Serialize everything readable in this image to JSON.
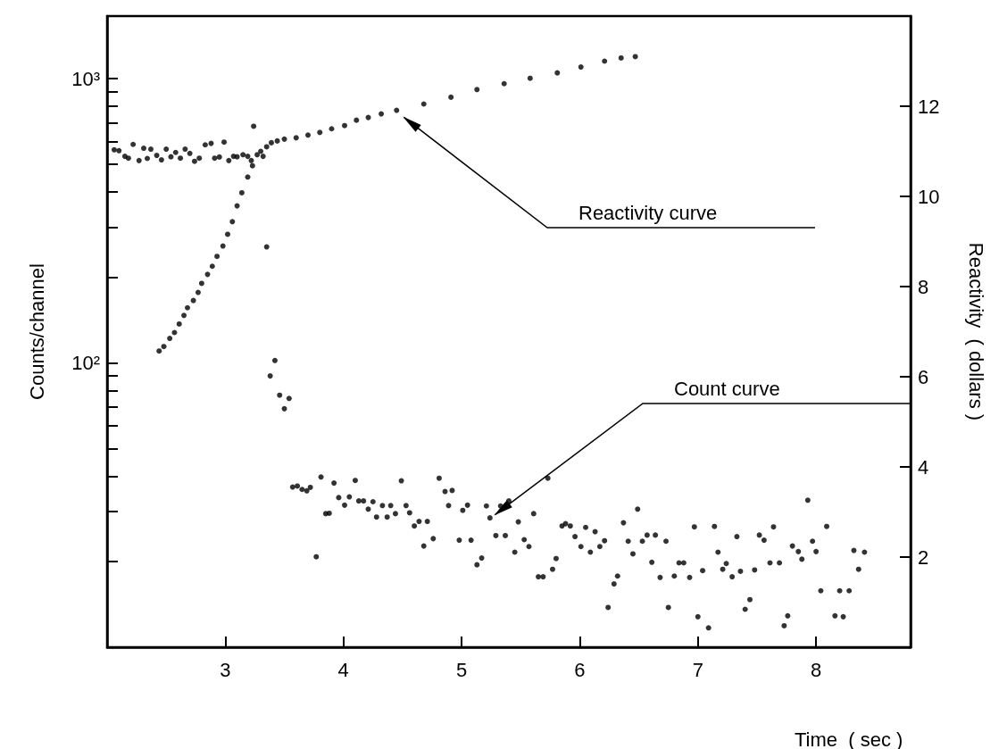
{
  "chart_data": {
    "type": "scatter",
    "xlabel": "Time  ( sec )",
    "ylabel": "Counts/channel",
    "y2label": "Reactivity  ( dollars )",
    "xlim": [
      2,
      8.8
    ],
    "xticks": [
      3,
      4,
      5,
      6,
      7,
      8
    ],
    "ylim": [
      10,
      1660
    ],
    "yticks": [
      {
        "value": 20,
        "label": null
      },
      {
        "value": 30,
        "label": null
      },
      {
        "value": 40,
        "label": null
      },
      {
        "value": 50,
        "label": null
      },
      {
        "value": 60,
        "label": null
      },
      {
        "value": 70,
        "label": null
      },
      {
        "value": 80,
        "label": null
      },
      {
        "value": 90,
        "label": null
      },
      {
        "value": 100,
        "label": "10²"
      },
      {
        "value": 200,
        "label": null
      },
      {
        "value": 300,
        "label": null
      },
      {
        "value": 400,
        "label": null
      },
      {
        "value": 500,
        "label": null
      },
      {
        "value": 600,
        "label": null
      },
      {
        "value": 700,
        "label": null
      },
      {
        "value": 800,
        "label": null
      },
      {
        "value": 900,
        "label": null
      },
      {
        "value": 1000,
        "label": "10³"
      }
    ],
    "y2lim": [
      0,
      14
    ],
    "y2ticks": [
      2,
      4,
      6,
      8,
      10,
      12
    ],
    "log": "y",
    "grid": false,
    "marker": "circle",
    "annotations": [
      "Reactivity curve",
      "Count curve"
    ],
    "series": [
      {
        "color": "#000000",
        "x": [
          2.06,
          2.1,
          2.15,
          2.18,
          2.22,
          2.27,
          2.31,
          2.34,
          2.37,
          2.42,
          2.46,
          2.5,
          2.54,
          2.58,
          2.62,
          2.66,
          2.7,
          2.74,
          2.78,
          2.83,
          2.88,
          2.91,
          2.95,
          2.99,
          3.03,
          3.07,
          3.1,
          3.15,
          3.19,
          3.22,
          3.24,
          3.27,
          3.32,
          3.35,
          3.38,
          3.42,
          3.46,
          3.5,
          3.54,
          3.57,
          3.61,
          3.65,
          3.69,
          3.72,
          3.77,
          3.81,
          3.85,
          3.88,
          3.92,
          3.96,
          4.01,
          4.05,
          4.1,
          4.13,
          4.17,
          4.21,
          4.25,
          4.28,
          4.33,
          4.37,
          4.4,
          4.44,
          4.49,
          4.53,
          4.56,
          4.6,
          4.64,
          4.68,
          4.71,
          4.76,
          4.81,
          4.86,
          4.89,
          4.92,
          4.98,
          5.01,
          5.05,
          5.08,
          5.13,
          5.17,
          5.21,
          5.24,
          5.29,
          5.33,
          5.37,
          5.4,
          5.45,
          5.48,
          5.53,
          5.57,
          5.61,
          5.65,
          5.69,
          5.73,
          5.77,
          5.8,
          5.85,
          5.88,
          5.92,
          5.96,
          6.01,
          6.05,
          6.09,
          6.13,
          6.17,
          6.21,
          6.24,
          6.29,
          6.32,
          6.37,
          6.41,
          6.45,
          6.49,
          6.53,
          6.57,
          6.61,
          6.64,
          6.68,
          6.73,
          6.75,
          6.8,
          6.84,
          6.88,
          6.93,
          6.97,
          7.0,
          7.04,
          7.09,
          7.14,
          7.17,
          7.21,
          7.24,
          7.29,
          7.33,
          7.36,
          7.4,
          7.44,
          7.48,
          7.52,
          7.56,
          7.61,
          7.64,
          7.69,
          7.73,
          7.76,
          7.8,
          7.85,
          7.88,
          7.93,
          7.97,
          8.0,
          8.04,
          8.09,
          8.16,
          8.2,
          8.23,
          8.28,
          8.32,
          8.36,
          8.41
        ],
        "values": [
          562,
          558,
          533,
          525,
          587,
          515,
          569,
          524,
          565,
          537,
          518,
          565,
          531,
          550,
          525,
          565,
          546,
          512,
          525,
          585,
          592,
          525,
          530,
          598,
          515,
          533,
          531,
          540,
          533,
          515,
          680,
          540,
          533,
          256,
          90,
          102,
          77,
          69,
          75,
          36.6,
          36.9,
          35.9,
          35.5,
          36.5,
          20.8,
          39.7,
          29.5,
          29.6,
          37.8,
          33.6,
          31.6,
          33.8,
          38.6,
          32.7,
          32.7,
          30.6,
          32.5,
          28.7,
          31.5,
          28.7,
          31.5,
          29.5,
          38.5,
          31.5,
          29.7,
          26.7,
          27.7,
          22.7,
          27.7,
          24.1,
          39.3,
          35.3,
          31.5,
          35.6,
          23.8,
          30.3,
          31.6,
          23.8,
          19.5,
          20.6,
          31.4,
          28.5,
          24.7,
          31.4,
          24.7,
          32.7,
          21.6,
          27.6,
          23.9,
          22.6,
          29.5,
          17.7,
          17.7,
          39.3,
          18.8,
          20.5,
          26.7,
          27.2,
          26.7,
          24.5,
          22.6,
          26.4,
          21.6,
          25.5,
          22.6,
          23.7,
          13.8,
          16.7,
          17.8,
          27.4,
          23.6,
          21.3,
          30.6,
          23.6,
          24.8,
          19.9,
          24.8,
          17.6,
          23.6,
          13.8,
          17.8,
          19.8,
          19.8,
          17.6,
          26.5,
          12.8,
          18.6,
          11.7,
          26.6,
          21.6,
          18.8,
          19.7,
          17.7,
          24.5,
          18.5,
          13.6,
          14.7,
          18.7,
          24.8,
          23.8,
          19.8,
          26.5,
          19.8,
          11.9,
          12.9,
          22.7,
          21.7,
          20.4,
          32.9,
          23.6,
          21.7,
          15.8,
          26.6,
          12.9,
          15.8,
          12.8,
          15.8,
          21.9,
          18.8,
          21.6
        ]
      },
      {
        "color": "#000000",
        "axis": "y2",
        "x": [
          2.44,
          2.48,
          2.53,
          2.57,
          2.61,
          2.65,
          2.68,
          2.73,
          2.77,
          2.8,
          2.85,
          2.89,
          2.93,
          2.98,
          3.02,
          3.06,
          3.1,
          3.14,
          3.19,
          3.23,
          3.3,
          3.35,
          3.39,
          3.44,
          3.5,
          3.6,
          3.7,
          3.8,
          3.9,
          4.01,
          4.11,
          4.21,
          4.32,
          4.45,
          4.68,
          4.91,
          5.13,
          5.36,
          5.58,
          5.81,
          6.01,
          6.21,
          6.35,
          6.47
        ],
        "values": [
          6.57,
          6.67,
          6.85,
          6.98,
          7.17,
          7.36,
          7.53,
          7.69,
          7.87,
          8.07,
          8.27,
          8.45,
          8.67,
          8.9,
          9.16,
          9.44,
          9.79,
          10.08,
          10.43,
          10.68,
          11.0,
          11.1,
          11.19,
          11.23,
          11.27,
          11.3,
          11.36,
          11.42,
          11.5,
          11.57,
          11.69,
          11.75,
          11.83,
          11.91,
          12.05,
          12.2,
          12.37,
          12.5,
          12.62,
          12.74,
          12.87,
          13.0,
          13.07,
          13.1
        ]
      }
    ]
  }
}
